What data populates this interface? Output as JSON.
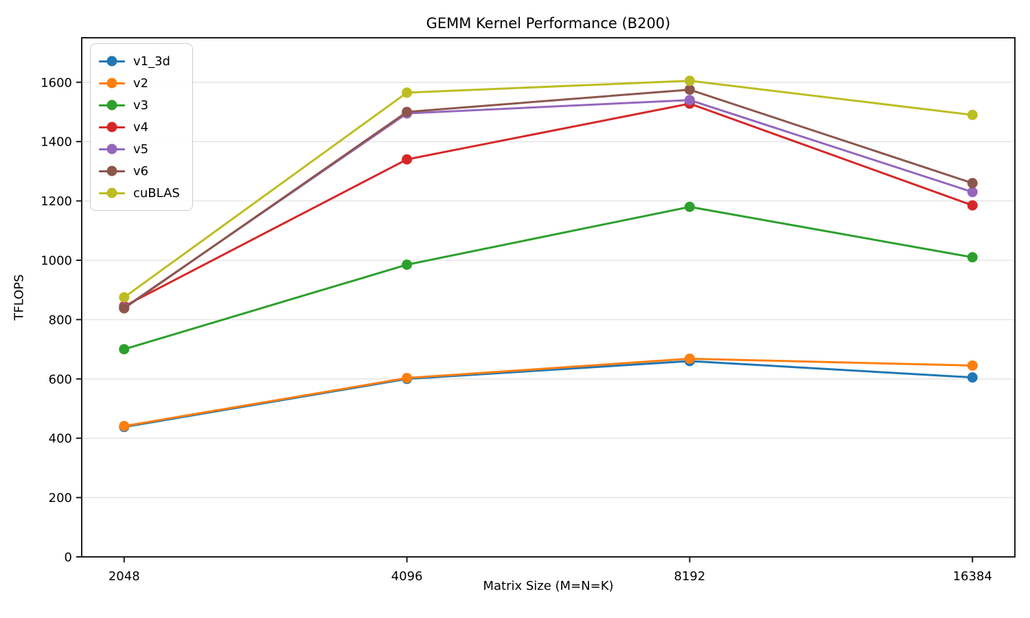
{
  "chart_data": {
    "type": "line",
    "title": "GEMM Kernel Performance (B200)",
    "xlabel": "Matrix Size (M=N=K)",
    "ylabel": "TFLOPS",
    "categories": [
      "2048",
      "4096",
      "8192",
      "16384"
    ],
    "yticks": [
      0,
      200,
      400,
      600,
      800,
      1000,
      1200,
      1400,
      1600
    ],
    "ylim": [
      0,
      1750
    ],
    "grid": "horizontal",
    "grid_color": "#e6e6e6",
    "background": "#ffffff",
    "legend_position": "upper-left",
    "marker": "circle",
    "series": [
      {
        "name": "v1_3d",
        "color": "#1f77b4",
        "values": [
          438,
          600,
          660,
          605
        ]
      },
      {
        "name": "v2",
        "color": "#ff7f0e",
        "values": [
          441,
          603,
          668,
          645
        ]
      },
      {
        "name": "v3",
        "color": "#2ca02c",
        "values": [
          700,
          985,
          1180,
          1010
        ]
      },
      {
        "name": "v4",
        "color": "#d62728",
        "values": [
          845,
          1340,
          1528,
          1185
        ]
      },
      {
        "name": "v5",
        "color": "#9467bd",
        "values": [
          840,
          1495,
          1540,
          1230
        ]
      },
      {
        "name": "v6",
        "color": "#8c564b",
        "values": [
          838,
          1500,
          1575,
          1260
        ]
      },
      {
        "name": "cuBLAS",
        "color": "#bcbd22",
        "values": [
          875,
          1565,
          1605,
          1490
        ]
      }
    ]
  }
}
